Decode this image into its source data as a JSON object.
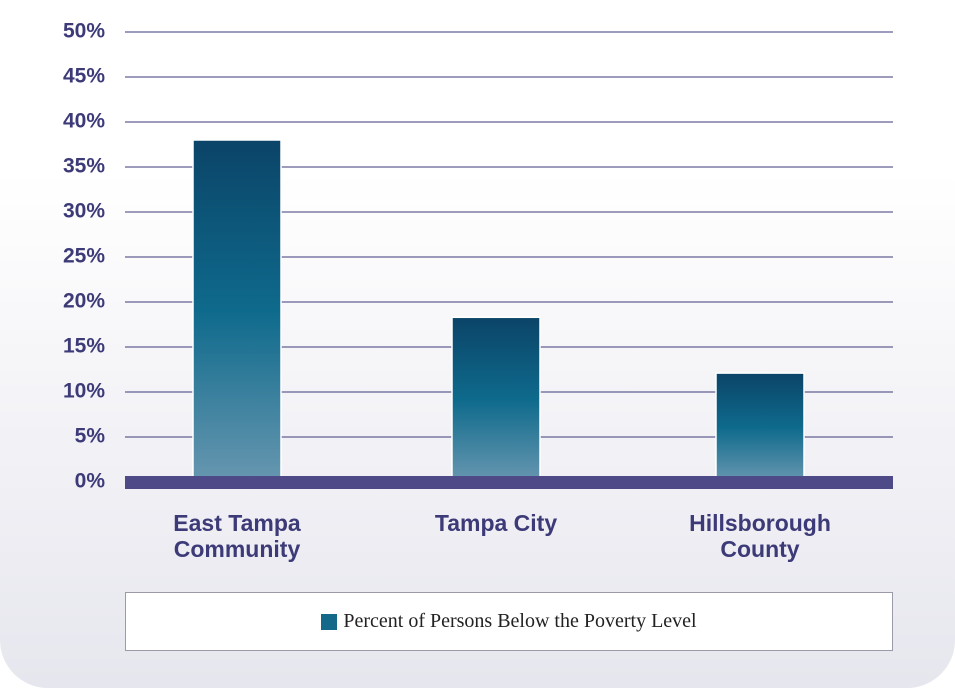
{
  "chart_data": {
    "type": "bar",
    "categories": [
      "East Tampa Community",
      "Tampa City",
      "Hillsborough County"
    ],
    "series": [
      {
        "name": "Percent of Persons Below the Poverty Level",
        "color": "#14688a",
        "values": [
          38,
          18.3,
          12.1
        ]
      }
    ],
    "ylim": [
      0,
      50
    ],
    "yticks": [
      {
        "value": 0,
        "label": "0%"
      },
      {
        "value": 5,
        "label": "5%"
      },
      {
        "value": 10,
        "label": "10%"
      },
      {
        "value": 15,
        "label": "15%"
      },
      {
        "value": 20,
        "label": "20%"
      },
      {
        "value": 25,
        "label": "25%"
      },
      {
        "value": 30,
        "label": "30%"
      },
      {
        "value": 35,
        "label": "35%"
      },
      {
        "value": 40,
        "label": "40%"
      },
      {
        "value": 45,
        "label": "45%"
      },
      {
        "value": 50,
        "label": "50%"
      }
    ],
    "grid": true,
    "legend": "bottom"
  }
}
